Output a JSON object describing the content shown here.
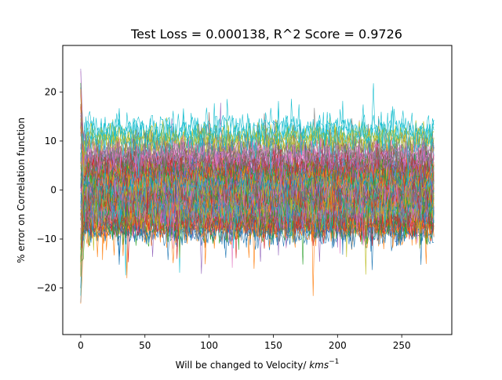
{
  "chart_data": {
    "type": "line",
    "title": "Test Loss = 0.000138, R^2 Score = 0.9726",
    "xlabel": {
      "text": "Will be changed to Velocity/ ",
      "unit": "kms",
      "unit_exponent": "−1"
    },
    "ylabel": "% error on Correlation function",
    "xlim": [
      -14,
      289
    ],
    "ylim": [
      -29.5,
      29.5
    ],
    "x_ticks": [
      0,
      50,
      100,
      150,
      200,
      250
    ],
    "y_ticks": [
      -20,
      -10,
      0,
      10,
      20
    ],
    "x_tick_labels": [
      "0",
      "50",
      "100",
      "150",
      "200",
      "250"
    ],
    "y_tick_labels": [
      "−20",
      "−10",
      "0",
      "10",
      "20"
    ],
    "grid": false,
    "legend": "none",
    "x_range": [
      0,
      275
    ],
    "series_count": 120,
    "series_mean_levels": [
      -8,
      -7,
      -6,
      -6,
      -5,
      -5,
      -4,
      -4,
      -3,
      -3,
      -2,
      -2,
      -1,
      -1,
      0,
      0,
      1,
      1,
      2,
      2,
      3,
      3,
      4,
      4,
      5,
      6,
      7,
      8,
      10,
      12
    ],
    "series_noise_amplitude": 2.2,
    "initial_spike_range": [
      -26,
      27
    ],
    "colors": [
      "#1f77b4",
      "#ff7f0e",
      "#2ca02c",
      "#d62728",
      "#9467bd",
      "#8c564b",
      "#e377c2",
      "#7f7f7f",
      "#bcbd22",
      "#17becf"
    ]
  }
}
